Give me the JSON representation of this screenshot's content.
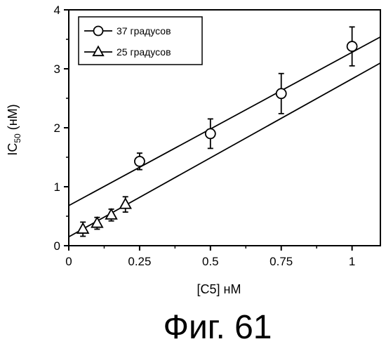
{
  "chart_data": {
    "type": "scatter",
    "xlabel": "[C5] нМ",
    "ylabel_main": "IC",
    "ylabel_sub": "50",
    "ylabel_unit": " (нМ)",
    "xlim": [
      0,
      1.1
    ],
    "ylim": [
      0,
      4
    ],
    "x_ticks": [
      "0",
      "0.25",
      "0.5",
      "0.75",
      "1"
    ],
    "y_ticks": [
      "0",
      "1",
      "2",
      "3",
      "4"
    ],
    "grid": false,
    "legend_position": "top-left",
    "series": [
      {
        "name": "37 градусов",
        "marker": "circle",
        "x": [
          0.25,
          0.5,
          0.75,
          1.0
        ],
        "y": [
          1.43,
          1.9,
          2.58,
          3.38
        ],
        "err": [
          0.14,
          0.25,
          0.34,
          0.33
        ],
        "fit": {
          "intercept": 0.68,
          "slope": 2.6
        }
      },
      {
        "name": "25 градусов",
        "marker": "triangle",
        "x": [
          0.05,
          0.1,
          0.15,
          0.2
        ],
        "y": [
          0.28,
          0.38,
          0.52,
          0.7
        ],
        "err": [
          0.12,
          0.1,
          0.1,
          0.13
        ],
        "fit": {
          "intercept": 0.15,
          "slope": 2.68
        }
      }
    ],
    "caption": "Фиг. 61",
    "colors": {
      "ink": "#000000",
      "background": "#ffffff"
    }
  }
}
